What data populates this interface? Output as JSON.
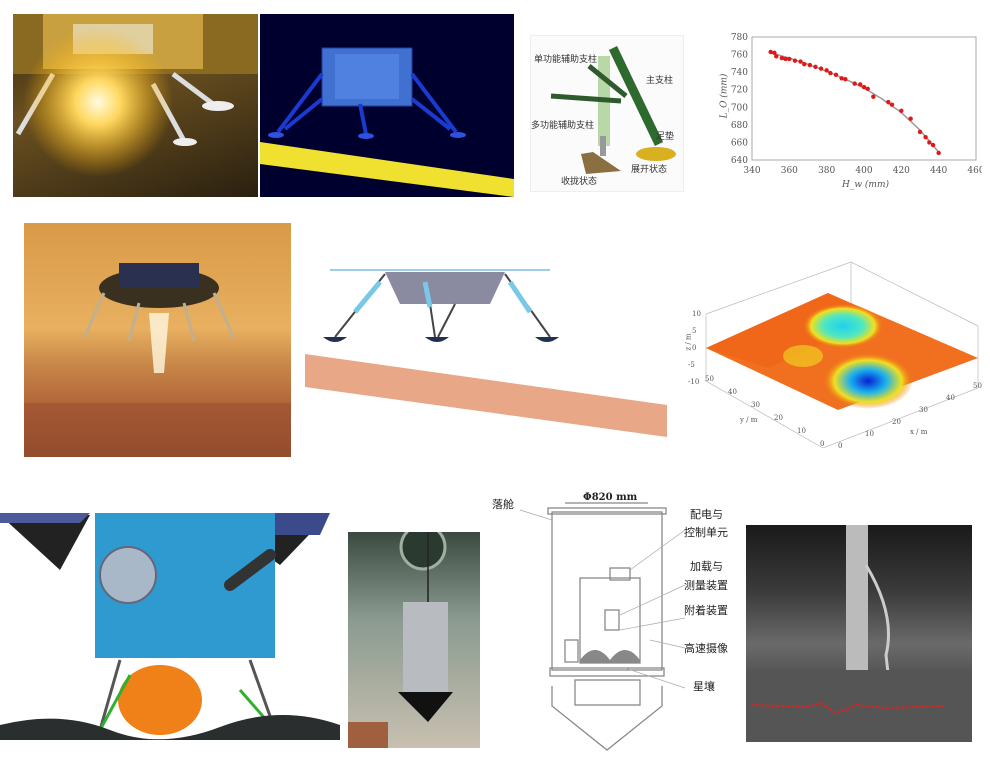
{
  "panels": {
    "leg_diagram": {
      "labels": {
        "single_aux_strut": "单功能辅助支柱",
        "main_strut": "主支柱",
        "multi_aux_strut": "多功能辅助支柱",
        "foot_pad": "足垫",
        "stowed_state": "收拢状态",
        "deployed_state": "展开状态"
      }
    },
    "terrain_plot": {
      "zlabel": "z / m",
      "xlabel": "x / m",
      "ylabel": "y / m",
      "z_ticks": [
        "10",
        "5",
        "0",
        "-5",
        "-10"
      ],
      "x_ticks": [
        "0",
        "10",
        "20",
        "30",
        "40",
        "50"
      ],
      "y_ticks": [
        "0",
        "10",
        "20",
        "30",
        "40",
        "50"
      ],
      "colormap": [
        "#0a1fd0",
        "#18d8f0",
        "#f0e020",
        "#f07010",
        "#e01010"
      ]
    },
    "drop_test_schematic": {
      "capsule": "落舱",
      "diameter": "Φ820 mm",
      "power_control_1": "配电与",
      "power_control_2": "控制单元",
      "loading_1": "加载与",
      "loading_2": "测量装置",
      "anchoring": "附着装置",
      "camera": "高速摄像",
      "regolith": "星壤"
    }
  },
  "chart_data": {
    "type": "scatter",
    "xlabel": "H_w (mm)",
    "ylabel": "L_O (mm)",
    "xlim": [
      340,
      460
    ],
    "ylim": [
      640,
      780
    ],
    "x_ticks": [
      340,
      360,
      380,
      400,
      420,
      440,
      460
    ],
    "y_ticks": [
      640,
      660,
      680,
      700,
      720,
      740,
      760,
      780
    ],
    "grid": false,
    "point_color": "#e01818",
    "fit_line_color": "#9a9a9a",
    "x": [
      350,
      352,
      353,
      356,
      358,
      360,
      363,
      366,
      368,
      371,
      374,
      377,
      380,
      382,
      385,
      388,
      390,
      395,
      398,
      400,
      402,
      405,
      413,
      415,
      420,
      425,
      430,
      433,
      435,
      437,
      440
    ],
    "y": [
      763,
      762,
      758,
      756,
      755,
      755,
      753,
      752,
      749,
      748,
      746,
      744,
      742,
      739,
      737,
      733,
      732,
      727,
      726,
      723,
      721,
      712,
      706,
      703,
      696,
      687,
      672,
      666,
      660,
      657,
      648
    ],
    "fit_x": [
      350,
      360,
      370,
      380,
      390,
      400,
      410,
      420,
      430,
      440
    ],
    "fit_y": [
      762,
      756,
      749,
      741,
      732,
      722,
      709,
      694,
      674,
      649
    ]
  }
}
